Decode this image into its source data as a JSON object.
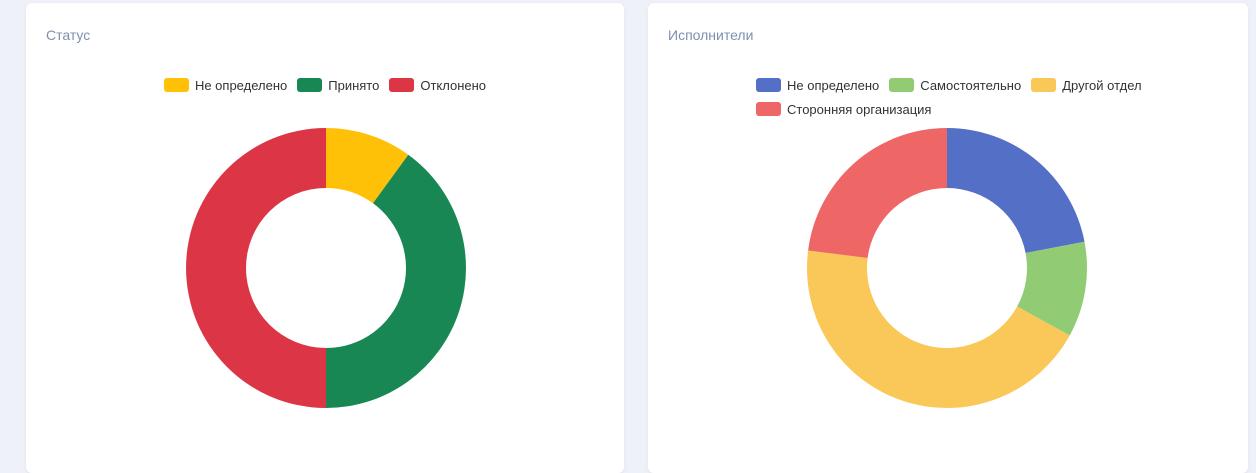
{
  "chart_data": [
    {
      "type": "pie",
      "variant": "doughnut",
      "title": "Статус",
      "legend_position": "top",
      "categories": [
        "Не определено",
        "Принято",
        "Отклонено"
      ],
      "values": [
        10,
        40,
        50
      ],
      "colors": [
        "#ffc107",
        "#198754",
        "#dc3545"
      ]
    },
    {
      "type": "pie",
      "variant": "doughnut",
      "title": "Исполнители",
      "legend_position": "top",
      "categories": [
        "Не определено",
        "Самостоятельно",
        "Другой отдел",
        "Сторонняя организация"
      ],
      "values": [
        22,
        11,
        44,
        23
      ],
      "colors": [
        "#5470c6",
        "#91cc75",
        "#fac858",
        "#ee6666"
      ]
    }
  ]
}
